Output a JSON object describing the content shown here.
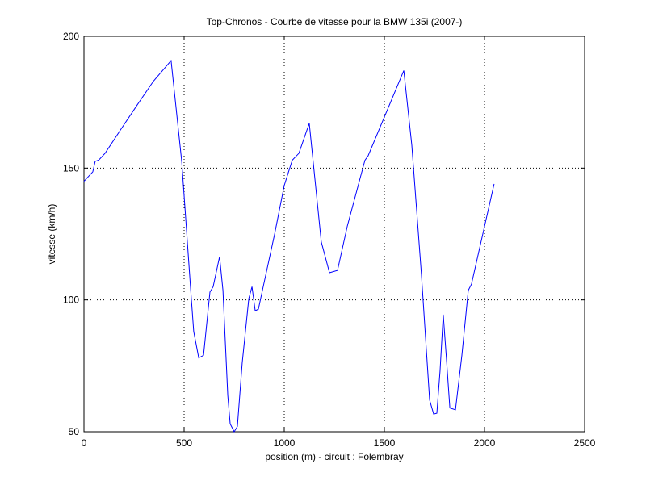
{
  "chart_data": {
    "type": "line",
    "title": "Top-Chronos - Courbe de vitesse pour la BMW 135i (2007-)",
    "x_label": "position (m) - circuit : Folembray",
    "y_label": "vitesse (km/h)",
    "x": [
      0,
      44,
      56,
      73,
      105,
      185,
      266,
      347,
      435,
      488,
      536,
      548,
      573,
      597,
      629,
      645,
      677,
      694,
      718,
      730,
      750,
      766,
      790,
      823,
      839,
      855,
      871,
      895,
      952,
      1000,
      1040,
      1073,
      1125,
      1185,
      1226,
      1266,
      1315,
      1403,
      1419,
      1597,
      1637,
      1685,
      1726,
      1746,
      1762,
      1778,
      1794,
      1810,
      1827,
      1855,
      1887,
      1919,
      1935,
      2048
    ],
    "series": [
      {
        "color": "#0000ff",
        "values": [
          145,
          148.6,
          152.6,
          153,
          155.6,
          164.8,
          174,
          183,
          190.8,
          152.6,
          100.5,
          88,
          78,
          79,
          103,
          105,
          116.4,
          103.6,
          63.8,
          53,
          50,
          52,
          76,
          100.5,
          105,
          95.9,
          96.5,
          105,
          125,
          143.4,
          153,
          155.6,
          167,
          122,
          110.3,
          111.2,
          128,
          153,
          154.7,
          187,
          158.7,
          109.7,
          62,
          56.7,
          57,
          73,
          94.4,
          77.6,
          59,
          58.3,
          79,
          103.6,
          106,
          144
        ]
      }
    ],
    "xlim": [
      0,
      2500
    ],
    "xticks": [
      0,
      500,
      1000,
      1500,
      2000,
      2500
    ],
    "ylim": [
      50,
      200
    ],
    "yticks": [
      50,
      100,
      150,
      200
    ],
    "grid": true
  }
}
